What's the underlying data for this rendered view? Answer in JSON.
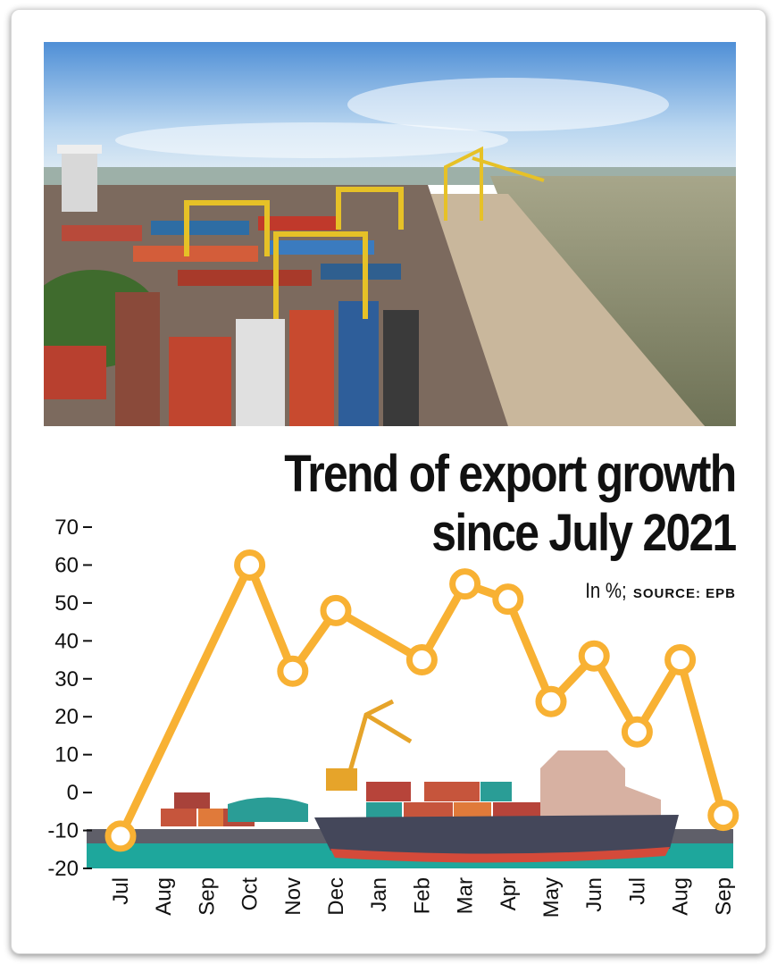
{
  "title_line1": "Trend of export growth",
  "title_line2": "since July 2021",
  "units": "In %;",
  "source": "SOURCE: EPB",
  "photo": {
    "subject": "container port with cranes and river"
  },
  "colors": {
    "line": "#F8B133",
    "ground": "#1EA79C",
    "background": "#FFFFFF",
    "text": "#111111"
  },
  "chart_data": {
    "type": "line",
    "title": "Trend of export growth since July 2021",
    "ylabel": "In %",
    "ylim": [
      -20,
      70
    ],
    "yticks": [
      70,
      60,
      50,
      40,
      30,
      20,
      10,
      0,
      -10,
      -20
    ],
    "categories": [
      "Jul",
      "Aug",
      "Sep",
      "Oct",
      "Nov",
      "Dec",
      "Jan",
      "Feb",
      "Mar",
      "Apr",
      "May",
      "Jun",
      "Jul",
      "Aug",
      "Sep"
    ],
    "series": [
      {
        "values": [
          -11.5,
          null,
          null,
          60,
          32,
          48,
          null,
          35,
          55,
          51,
          24,
          36,
          16,
          35,
          -6
        ]
      }
    ],
    "grid": false,
    "legend": "none"
  }
}
